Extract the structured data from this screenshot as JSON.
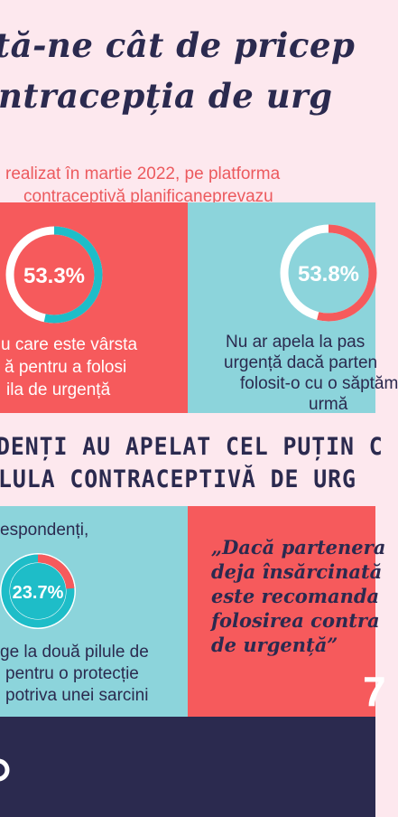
{
  "title": {
    "line1": "tă-ne cât de pricep",
    "line2": "ntracepția de urg"
  },
  "subtitle": {
    "line1": "realizat în martie 2022,  pe platforma",
    "line2": "contraceptivă planificaneprevazu"
  },
  "chart_data": [
    {
      "type": "pie",
      "values": [
        53.3
      ],
      "labels": [
        "53.3%"
      ],
      "text": [
        "u care este vârsta",
        "ă pentru a folosi",
        "ila de urgență"
      ],
      "colors": {
        "fill": "#1ebdc8",
        "track": "#ffffff",
        "background": "#f65a5c"
      }
    },
    {
      "type": "pie",
      "values": [
        53.8
      ],
      "labels": [
        "53.8%"
      ],
      "text": [
        "Nu ar apela la pas",
        "urgență dacă parten",
        "folosit-o cu o săptăm",
        "urmă"
      ],
      "colors": {
        "fill": "#f65a5c",
        "track": "#ffffff",
        "background": "#8cd4db"
      }
    },
    {
      "type": "pie",
      "values": [
        23.7
      ],
      "labels": [
        "23.7%"
      ],
      "text": [
        "ge la două pilule de",
        "pentru o protecție",
        "potriva unei sarcini"
      ],
      "colors": {
        "fill": "#f65a5c",
        "track": "#ffffff",
        "background": "#8cd4db"
      }
    }
  ],
  "band": {
    "line1": "DENȚI AU APELAT CEL PUȚIN C",
    "line2": "LULA CONTRACEPTIVĂ DE URG"
  },
  "respondenti_label": "espondenți,",
  "quote": {
    "lines": [
      "„Dacă partenera",
      "deja însărcinată",
      "este recomanda",
      "folosirea contra",
      "de urgență”"
    ],
    "number": "7"
  },
  "colors": {
    "background": "#fde8ee",
    "navy": "#2b2a4f",
    "coral": "#f65a5c",
    "teal": "#1ebdc8",
    "light_teal": "#8cd4db"
  }
}
